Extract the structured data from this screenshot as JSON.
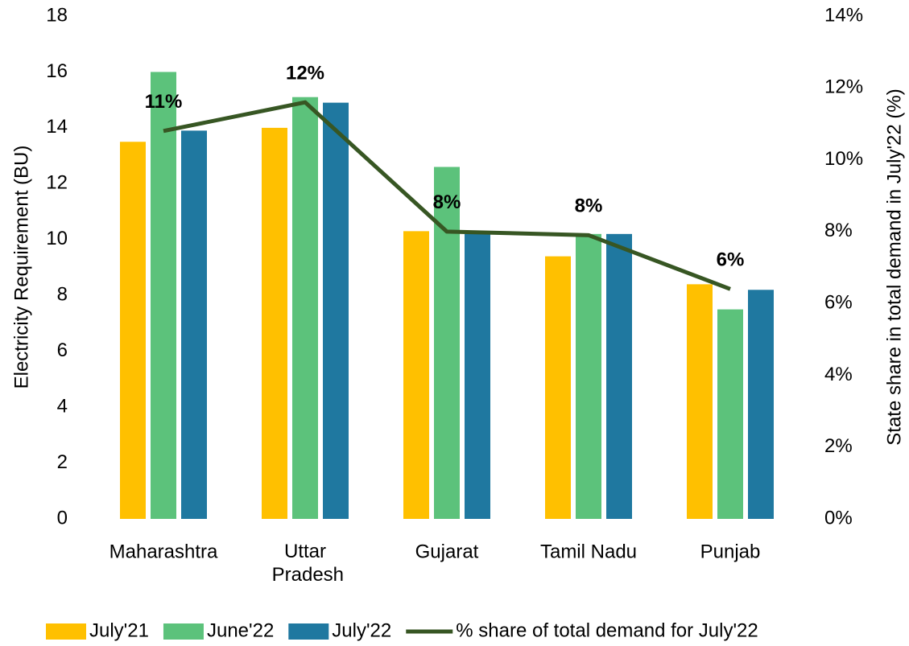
{
  "chart_data": {
    "type": "bar",
    "categories": [
      "Maharashtra",
      "Uttar\nPradesh",
      "Gujarat",
      "Tamil Nadu",
      "Punjab"
    ],
    "series": [
      {
        "name": "July'21",
        "color": "#FFC000",
        "values": [
          13.5,
          14.0,
          10.3,
          9.4,
          8.4
        ]
      },
      {
        "name": "June'22",
        "color": "#5CC27B",
        "values": [
          16.0,
          15.1,
          12.6,
          10.2,
          7.5
        ]
      },
      {
        "name": "July'22",
        "color": "#1F78A0",
        "values": [
          13.9,
          14.9,
          10.2,
          10.2,
          8.2
        ]
      },
      {
        "name": "% share of total demand for July'22",
        "color": "#375623",
        "type": "line",
        "axis": "y2",
        "values": [
          10.8,
          11.6,
          8.0,
          7.9,
          6.4
        ],
        "value_labels": [
          "11%",
          "12%",
          "8%",
          "8%",
          "6%"
        ]
      }
    ],
    "y_label": "Electricity Requirement (BU)",
    "y2_label": "State share in total demand in July'22 (%)",
    "ylim": [
      0,
      18
    ],
    "yticks": [
      0,
      2,
      4,
      6,
      8,
      10,
      12,
      14,
      16,
      18
    ],
    "y2lim": [
      0,
      14
    ],
    "y2ticks": [
      {
        "value": 0,
        "label": "0%"
      },
      {
        "value": 2,
        "label": "2%"
      },
      {
        "value": 4,
        "label": "4%"
      },
      {
        "value": 6,
        "label": "6%"
      },
      {
        "value": 8,
        "label": "8%"
      },
      {
        "value": 10,
        "label": "10%"
      },
      {
        "value": 12,
        "label": "12%"
      },
      {
        "value": 14,
        "label": "14%"
      }
    ],
    "grid": false,
    "legend": "bottom"
  }
}
